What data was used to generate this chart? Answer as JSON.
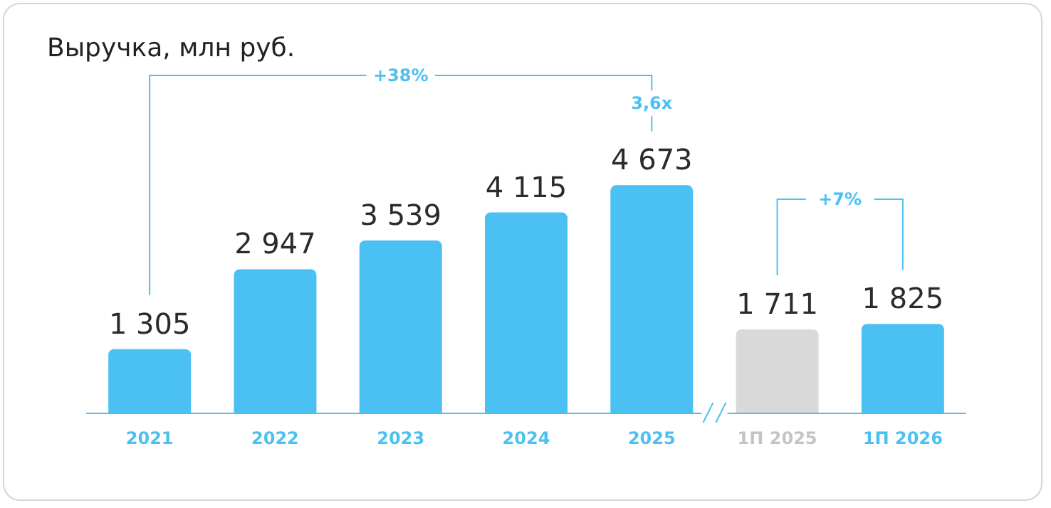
{
  "chart_data": {
    "type": "bar",
    "title": "Выручка, млн руб.",
    "categories": [
      "2021",
      "2022",
      "2023",
      "2024",
      "2025",
      "1П 2025",
      "1П 2026"
    ],
    "values": [
      1305,
      2947,
      3539,
      4115,
      4673,
      1711,
      1825
    ],
    "value_labels": [
      "1 305",
      "2 947",
      "3 539",
      "4 115",
      "4 673",
      "1 711",
      "1 825"
    ],
    "colors": [
      "#4bc0f2",
      "#4bc0f2",
      "#4bc0f2",
      "#4bc0f2",
      "#4bc0f2",
      "#d9d9d9",
      "#4bc0f2"
    ],
    "annotations": [
      "+38%",
      "3,6x",
      "+7%"
    ]
  }
}
